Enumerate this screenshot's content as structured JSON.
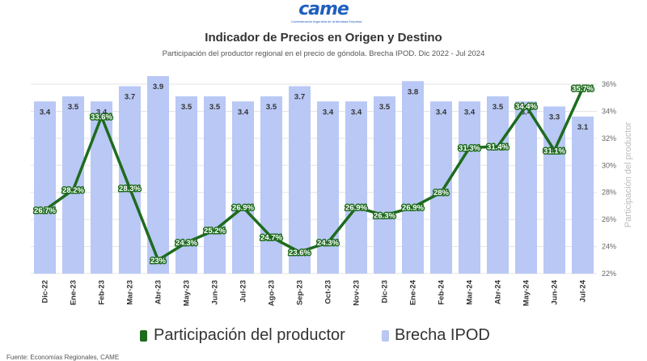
{
  "logo": {
    "text": "came",
    "subtitle": "Confederación Argentina de la Mediana Empresa"
  },
  "source": "Fuente: Economías Regionales, CAME",
  "chart_data": {
    "type": "bar+line",
    "title": "Indicador de Precios en Origen y Destino",
    "subtitle": "Participación del productor regional en el precio de góndola. Brecha IPOD. Dic 2022 - Jul 2024",
    "categories": [
      "Dic-22",
      "Ene-23",
      "Feb-23",
      "Mar-23",
      "Abr-23",
      "May-23",
      "Jun-23",
      "Jul-23",
      "Ago-23",
      "Sep-23",
      "Oct-23",
      "Nov-23",
      "Dic-23",
      "Ene-24",
      "Feb-24",
      "Mar-24",
      "Abr-24",
      "May-24",
      "Jun-24",
      "Jul-24"
    ],
    "series": [
      {
        "name": "Participación del productor",
        "type": "line",
        "axis": "right",
        "color": "#1e6b1e",
        "values": [
          26.7,
          28.2,
          33.6,
          28.3,
          23,
          24.3,
          25.2,
          26.9,
          24.7,
          23.6,
          24.3,
          26.9,
          26.3,
          26.9,
          28,
          31.3,
          31.4,
          34.4,
          31.1,
          35.7
        ],
        "labels": [
          "26.7%",
          "28.2%",
          "33.6%",
          "28.3%",
          "23%",
          "24.3%",
          "25.2%",
          "26.9%",
          "24.7%",
          "23.6%",
          "24.3%",
          "26.9%",
          "26.3%",
          "26.9%",
          "28%",
          "31.3%",
          "31.4%",
          "34.4%",
          "31.1%",
          "35.7%"
        ]
      },
      {
        "name": "Brecha IPOD",
        "type": "bar",
        "axis": "left",
        "color": "#b9c8f5",
        "values": [
          3.4,
          3.5,
          3.4,
          3.7,
          3.9,
          3.5,
          3.5,
          3.4,
          3.5,
          3.7,
          3.4,
          3.4,
          3.5,
          3.8,
          3.4,
          3.4,
          3.5,
          3.4,
          3.3,
          3.1
        ],
        "labels": [
          "3.4",
          "3.5",
          "3.4",
          "3.7",
          "3.9",
          "3.5",
          "3.5",
          "3.4",
          "3.5",
          "3.7",
          "3.4",
          "3.4",
          "3.5",
          "3.8",
          "3.4",
          "3.4",
          "3.5",
          "3.4",
          "3.3",
          "3.1"
        ]
      }
    ],
    "y_right": {
      "label": "Participación del productor",
      "range": [
        22,
        36.6
      ],
      "ticks": [
        22,
        24,
        26,
        28,
        30,
        32,
        34,
        36
      ],
      "tick_labels": [
        "22%",
        "24%",
        "26%",
        "28%",
        "30%",
        "32%",
        "34%",
        "36%"
      ]
    },
    "y_left": {
      "range": [
        0,
        3.9
      ],
      "visible": false
    },
    "grid": true,
    "legend": "bottom"
  }
}
